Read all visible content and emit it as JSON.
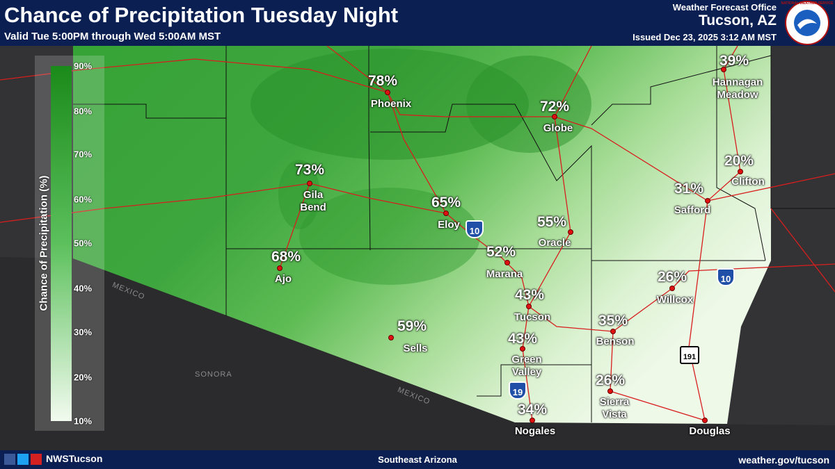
{
  "header": {
    "title": "Chance of Precipitation Tuesday Night",
    "subtitle": "Valid Tue 5:00PM through Wed 5:00AM MST",
    "office": "Weather Forecast Office",
    "location": "Tucson, AZ",
    "issued": "Issued Dec 23, 2025 3:12 AM MST",
    "logo": "NATIONAL WEATHER SERVICE"
  },
  "legend": {
    "title": "Chance of Precipitation (%)",
    "ticks": [
      "90%",
      "80%",
      "70%",
      "60%",
      "50%",
      "40%",
      "30%",
      "20%",
      "10%"
    ]
  },
  "regions": [
    "MEXICO",
    "SONORA",
    "MEXICO"
  ],
  "highways": [
    "10",
    "10",
    "19",
    "191"
  ],
  "cities": [
    {
      "name": "Phoenix",
      "percent": "78%"
    },
    {
      "name": "Globe",
      "percent": "72%"
    },
    {
      "name": "Hannagan Meadow",
      "percent": "39%"
    },
    {
      "name": "Clifton",
      "percent": "20%"
    },
    {
      "name": "Safford",
      "percent": "31%"
    },
    {
      "name": "Gila Bend",
      "percent": "73%"
    },
    {
      "name": "Eloy",
      "percent": "65%"
    },
    {
      "name": "Oracle",
      "percent": "55%"
    },
    {
      "name": "Marana",
      "percent": "52%"
    },
    {
      "name": "Ajo",
      "percent": "68%"
    },
    {
      "name": "Willcox",
      "percent": "26%"
    },
    {
      "name": "Tucson",
      "percent": "43%"
    },
    {
      "name": "Benson",
      "percent": "35%"
    },
    {
      "name": "Sells",
      "percent": "59%"
    },
    {
      "name": "Green Valley",
      "percent": "43%"
    },
    {
      "name": "Sierra Vista",
      "percent": "26%"
    },
    {
      "name": "Nogales",
      "percent": "34%"
    },
    {
      "name": "Douglas"
    }
  ],
  "footer": {
    "social": "NWSTucson",
    "region": "Southeast Arizona",
    "url": "weather.gov/tucson"
  }
}
